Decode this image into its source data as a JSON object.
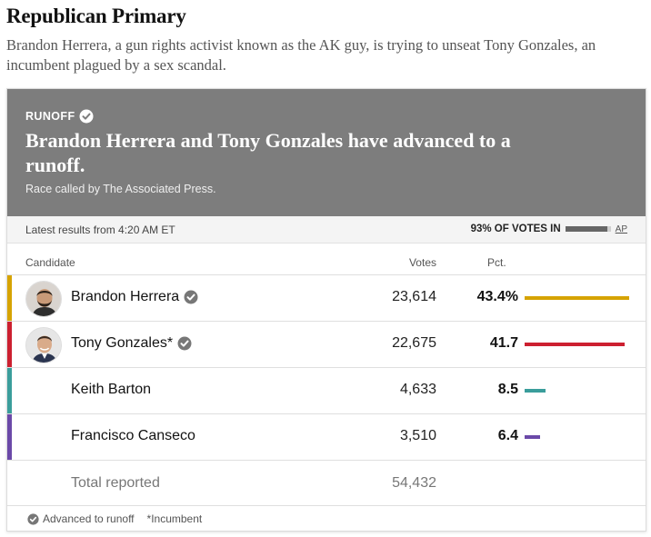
{
  "page": {
    "title": "Republican Primary",
    "dek": "Brandon Herrera, a gun rights activist known as the AK guy, is trying to unseat Tony Gonzales, an incumbent plagued by a sex scandal."
  },
  "banner": {
    "tag": "RUNOFF",
    "headline": "Brandon Herrera and Tony Gonzales have advanced to a runoff.",
    "called": "Race called by The Associated Press.",
    "bg_color": "#7d7d7d"
  },
  "status": {
    "latest": "Latest results from 4:20 AM ET",
    "reporting_text": "93% OF VOTES IN",
    "reporting_fraction": 0.93,
    "source": "AP"
  },
  "table": {
    "col_candidate": "Candidate",
    "col_votes": "Votes",
    "col_pct": "Pct.",
    "rows": [
      {
        "name": "Brandon Herrera",
        "votes": "23,614",
        "pct": "43.4%",
        "pct_value": 43.4,
        "color": "#d6a300",
        "advanced": true,
        "photo": true
      },
      {
        "name": "Tony Gonzales*",
        "votes": "22,675",
        "pct": "41.7",
        "pct_value": 41.7,
        "color": "#cc2030",
        "advanced": true,
        "photo": true
      },
      {
        "name": "Keith Barton",
        "votes": "4,633",
        "pct": "8.5",
        "pct_value": 8.5,
        "color": "#3a9d9b",
        "advanced": false,
        "photo": false
      },
      {
        "name": "Francisco Canseco",
        "votes": "3,510",
        "pct": "6.4",
        "pct_value": 6.4,
        "color": "#6b49a8",
        "advanced": false,
        "photo": false
      }
    ],
    "total_label": "Total reported",
    "total_votes": "54,432"
  },
  "footer": {
    "advanced_label": "Advanced to runoff",
    "incumbent_label": "*Incumbent"
  }
}
